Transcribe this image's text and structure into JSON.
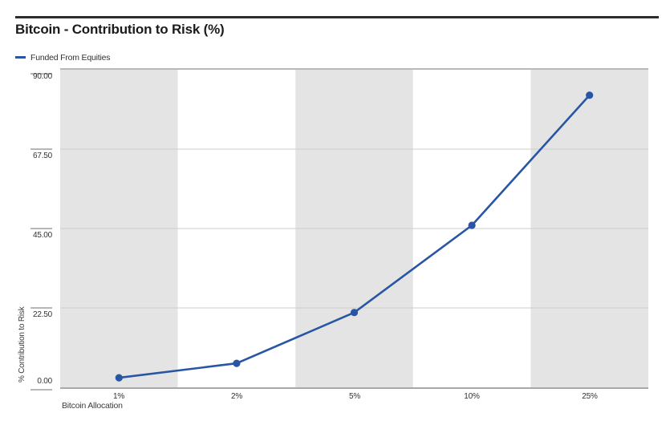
{
  "header": {
    "title": "Bitcoin - Contribution to Risk (%)"
  },
  "chart_data": {
    "type": "line",
    "title": "Bitcoin - Contribution to Risk (%)",
    "categories": [
      "1%",
      "2%",
      "5%",
      "10%",
      "25%"
    ],
    "series": [
      {
        "name": "Funded From Equities",
        "color": "#2856a4",
        "values": [
          2.7,
          6.8,
          21.2,
          45.9,
          82.8
        ]
      }
    ],
    "xlabel": "Bitcoin Allocation",
    "ylabel": "% Contribution to Risk",
    "ylim": [
      0,
      90
    ],
    "yticks": [
      0,
      22.5,
      45,
      67.5,
      90
    ],
    "ytick_labels": [
      "0.00",
      "22.50",
      "45.00",
      "67.50",
      "90.00"
    ],
    "grid": "horizontal gridlines at each y tick",
    "plot_background": "alternating vertical bands, gray under odd categories",
    "legend_position": "top-left above plot"
  },
  "colors": {
    "accent_blue": "#2856a4",
    "band_gray": "#e4e4e4",
    "band_white": "#ffffff",
    "gridline": "#cccccc",
    "plot_top_border": "#b9b9b9",
    "axis_line": "#a8a8a8",
    "tick_mark": "#8c8c8c",
    "title_rule": "#2d2d2d"
  }
}
